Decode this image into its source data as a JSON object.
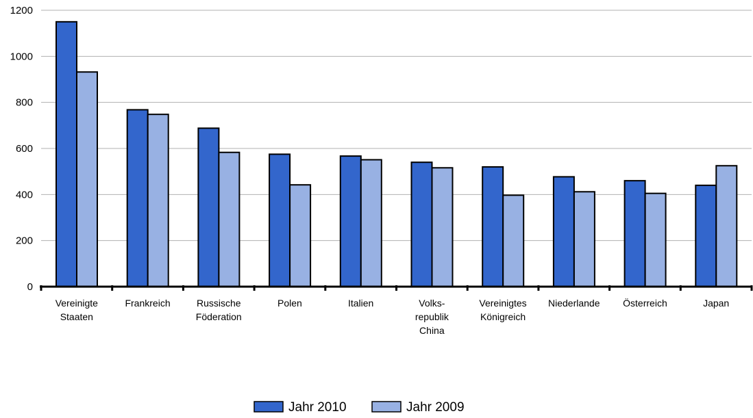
{
  "chart_data": {
    "type": "bar",
    "categories": [
      [
        "Vereinigte",
        "Staaten"
      ],
      [
        "Frankreich"
      ],
      [
        "Russische",
        "Föderation"
      ],
      [
        "Polen"
      ],
      [
        "Italien"
      ],
      [
        "Volks-",
        "republik",
        "China"
      ],
      [
        "Vereinigtes",
        "Königreich"
      ],
      [
        "Niederlande"
      ],
      [
        "Österreich"
      ],
      [
        "Japan"
      ]
    ],
    "series": [
      {
        "name": "Jahr 2010",
        "color": "#3366cc",
        "values": [
          1150,
          768,
          688,
          575,
          567,
          540,
          520,
          477,
          460,
          440
        ]
      },
      {
        "name": "Jahr 2009",
        "color": "#98b1e3",
        "values": [
          932,
          748,
          583,
          442,
          551,
          516,
          397,
          412,
          405,
          525
        ]
      }
    ],
    "ylim": [
      0,
      1200
    ],
    "yticks": [
      "0",
      "200",
      "400",
      "600",
      "800",
      "1000",
      "1200"
    ],
    "grid": true,
    "legend_position": "bottom-center"
  }
}
